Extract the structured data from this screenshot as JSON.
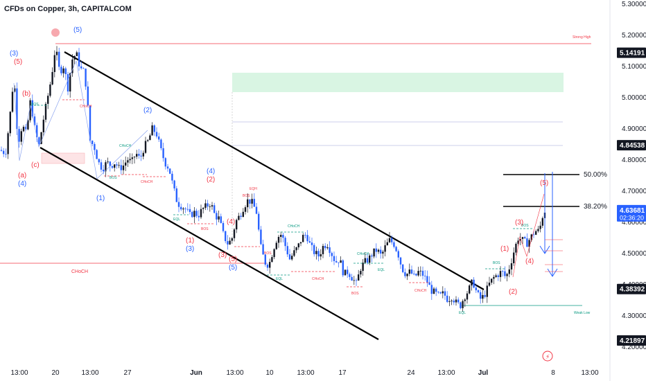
{
  "chart_title": "CFDs on Copper, 3h, CAPITALCOM",
  "chart_data": {
    "type": "candlestick",
    "title": "CFDs on Copper, 3h, CAPITALCOM",
    "ylim": [
      4.2,
      5.3
    ],
    "y_ticks": [
      "5.30000",
      "5.20000",
      "5.10000",
      "5.00000",
      "4.90000",
      "4.80000",
      "4.70000",
      "4.60000",
      "4.50000",
      "4.40000",
      "4.30000",
      "4.20000"
    ],
    "x_ticks": [
      "13:00",
      "20",
      "13:00",
      "27",
      "Jun",
      "13:00",
      "10",
      "13:00",
      "17",
      "24",
      "13:00",
      "Jul",
      "8",
      "13:00"
    ],
    "price_tags": [
      {
        "label": "5.14191",
        "value": 5.14191,
        "style": "dark"
      },
      {
        "label": "4.84538",
        "value": 4.84538,
        "style": "dark"
      },
      {
        "label": "4.63681",
        "value": 4.63681,
        "style": "blue",
        "countdown": "02:36:20"
      },
      {
        "label": "4.38392",
        "value": 4.38392,
        "style": "dark"
      },
      {
        "label": "4.21897",
        "value": 4.21897,
        "style": "dark"
      }
    ],
    "price_path": [
      [
        0,
        4.83
      ],
      [
        8,
        4.82
      ],
      [
        14,
        4.93
      ],
      [
        20,
        5.07
      ],
      [
        26,
        4.85
      ],
      [
        32,
        4.91
      ],
      [
        38,
        4.88
      ],
      [
        44,
        4.99
      ],
      [
        50,
        4.9
      ],
      [
        56,
        4.84
      ],
      [
        62,
        4.92
      ],
      [
        68,
        4.99
      ],
      [
        74,
        5.06
      ],
      [
        80,
        5.16
      ],
      [
        86,
        5.08
      ],
      [
        92,
        5.1
      ],
      [
        98,
        5.03
      ],
      [
        104,
        5.12
      ],
      [
        110,
        5.14
      ],
      [
        116,
        5.09
      ],
      [
        122,
        5.08
      ],
      [
        126,
        4.99
      ],
      [
        130,
        4.86
      ],
      [
        136,
        4.84
      ],
      [
        142,
        4.79
      ],
      [
        148,
        4.77
      ],
      [
        154,
        4.79
      ],
      [
        160,
        4.78
      ],
      [
        166,
        4.79
      ],
      [
        172,
        4.77
      ],
      [
        178,
        4.78
      ],
      [
        184,
        4.8
      ],
      [
        190,
        4.79
      ],
      [
        196,
        4.82
      ],
      [
        202,
        4.8
      ],
      [
        208,
        4.84
      ],
      [
        214,
        4.86
      ],
      [
        220,
        4.9
      ],
      [
        226,
        4.88
      ],
      [
        232,
        4.83
      ],
      [
        238,
        4.79
      ],
      [
        244,
        4.77
      ],
      [
        250,
        4.71
      ],
      [
        256,
        4.66
      ],
      [
        262,
        4.65
      ],
      [
        268,
        4.64
      ],
      [
        274,
        4.62
      ],
      [
        280,
        4.63
      ],
      [
        286,
        4.62
      ],
      [
        292,
        4.64
      ],
      [
        298,
        4.65
      ],
      [
        304,
        4.66
      ],
      [
        310,
        4.62
      ],
      [
        316,
        4.61
      ],
      [
        322,
        4.56
      ],
      [
        328,
        4.53
      ],
      [
        334,
        4.54
      ],
      [
        340,
        4.6
      ],
      [
        346,
        4.62
      ],
      [
        352,
        4.65
      ],
      [
        358,
        4.67
      ],
      [
        364,
        4.66
      ],
      [
        370,
        4.63
      ],
      [
        376,
        4.52
      ],
      [
        382,
        4.47
      ],
      [
        388,
        4.46
      ],
      [
        394,
        4.51
      ],
      [
        400,
        4.55
      ],
      [
        406,
        4.56
      ],
      [
        412,
        4.52
      ],
      [
        418,
        4.48
      ],
      [
        424,
        4.5
      ],
      [
        430,
        4.52
      ],
      [
        436,
        4.55
      ],
      [
        442,
        4.56
      ],
      [
        448,
        4.52
      ],
      [
        454,
        4.5
      ],
      [
        460,
        4.49
      ],
      [
        466,
        4.52
      ],
      [
        472,
        4.53
      ],
      [
        478,
        4.5
      ],
      [
        484,
        4.47
      ],
      [
        490,
        4.48
      ],
      [
        496,
        4.43
      ],
      [
        502,
        4.44
      ],
      [
        508,
        4.42
      ],
      [
        514,
        4.4
      ],
      [
        520,
        4.45
      ],
      [
        526,
        4.47
      ],
      [
        532,
        4.48
      ],
      [
        538,
        4.5
      ],
      [
        544,
        4.51
      ],
      [
        550,
        4.49
      ],
      [
        556,
        4.52
      ],
      [
        562,
        4.54
      ],
      [
        568,
        4.53
      ],
      [
        574,
        4.5
      ],
      [
        580,
        4.45
      ],
      [
        586,
        4.43
      ],
      [
        592,
        4.44
      ],
      [
        598,
        4.42
      ],
      [
        604,
        4.44
      ],
      [
        610,
        4.43
      ],
      [
        616,
        4.41
      ],
      [
        622,
        4.38
      ],
      [
        628,
        4.37
      ],
      [
        634,
        4.36
      ],
      [
        640,
        4.37
      ],
      [
        646,
        4.35
      ],
      [
        652,
        4.36
      ],
      [
        658,
        4.34
      ],
      [
        664,
        4.33
      ],
      [
        670,
        4.36
      ],
      [
        676,
        4.38
      ],
      [
        682,
        4.41
      ],
      [
        688,
        4.37
      ],
      [
        694,
        4.35
      ],
      [
        700,
        4.37
      ],
      [
        706,
        4.4
      ],
      [
        712,
        4.42
      ],
      [
        718,
        4.43
      ],
      [
        724,
        4.44
      ],
      [
        730,
        4.42
      ],
      [
        736,
        4.46
      ],
      [
        742,
        4.51
      ],
      [
        748,
        4.55
      ],
      [
        754,
        4.54
      ],
      [
        760,
        4.53
      ],
      [
        766,
        4.55
      ],
      [
        772,
        4.57
      ],
      [
        778,
        4.57
      ],
      [
        784,
        4.63
      ],
      [
        788,
        4.64
      ]
    ]
  },
  "levels": {
    "fib_50": "50.00%",
    "fib_382": "38.20%",
    "strong_high": "Strong High",
    "weak_low": "Weak Low",
    "choch_main": "CHoCH"
  },
  "annotations": {
    "bos": "BOS",
    "choch": "CHoCH",
    "eql": "EQL",
    "eqh": "EQH",
    "wave_blue": [
      "(3)",
      "(4)",
      "(5)",
      "(2)",
      "(1)",
      "(4)",
      "(3)",
      "(5)"
    ],
    "wave_red": [
      "(5)",
      "(b)",
      "(a)",
      "(c)",
      "(2)",
      "(1)",
      "(4)",
      "(3)",
      "(5)",
      "(1)",
      "(2)",
      "(3)",
      "(4)",
      "(5)"
    ]
  },
  "colors": {
    "up": "#131722",
    "down": "#2962ff",
    "red": "#f23645",
    "channel": "#000000",
    "zone": "#c8f0d8",
    "weak_low_line": "#089981"
  }
}
